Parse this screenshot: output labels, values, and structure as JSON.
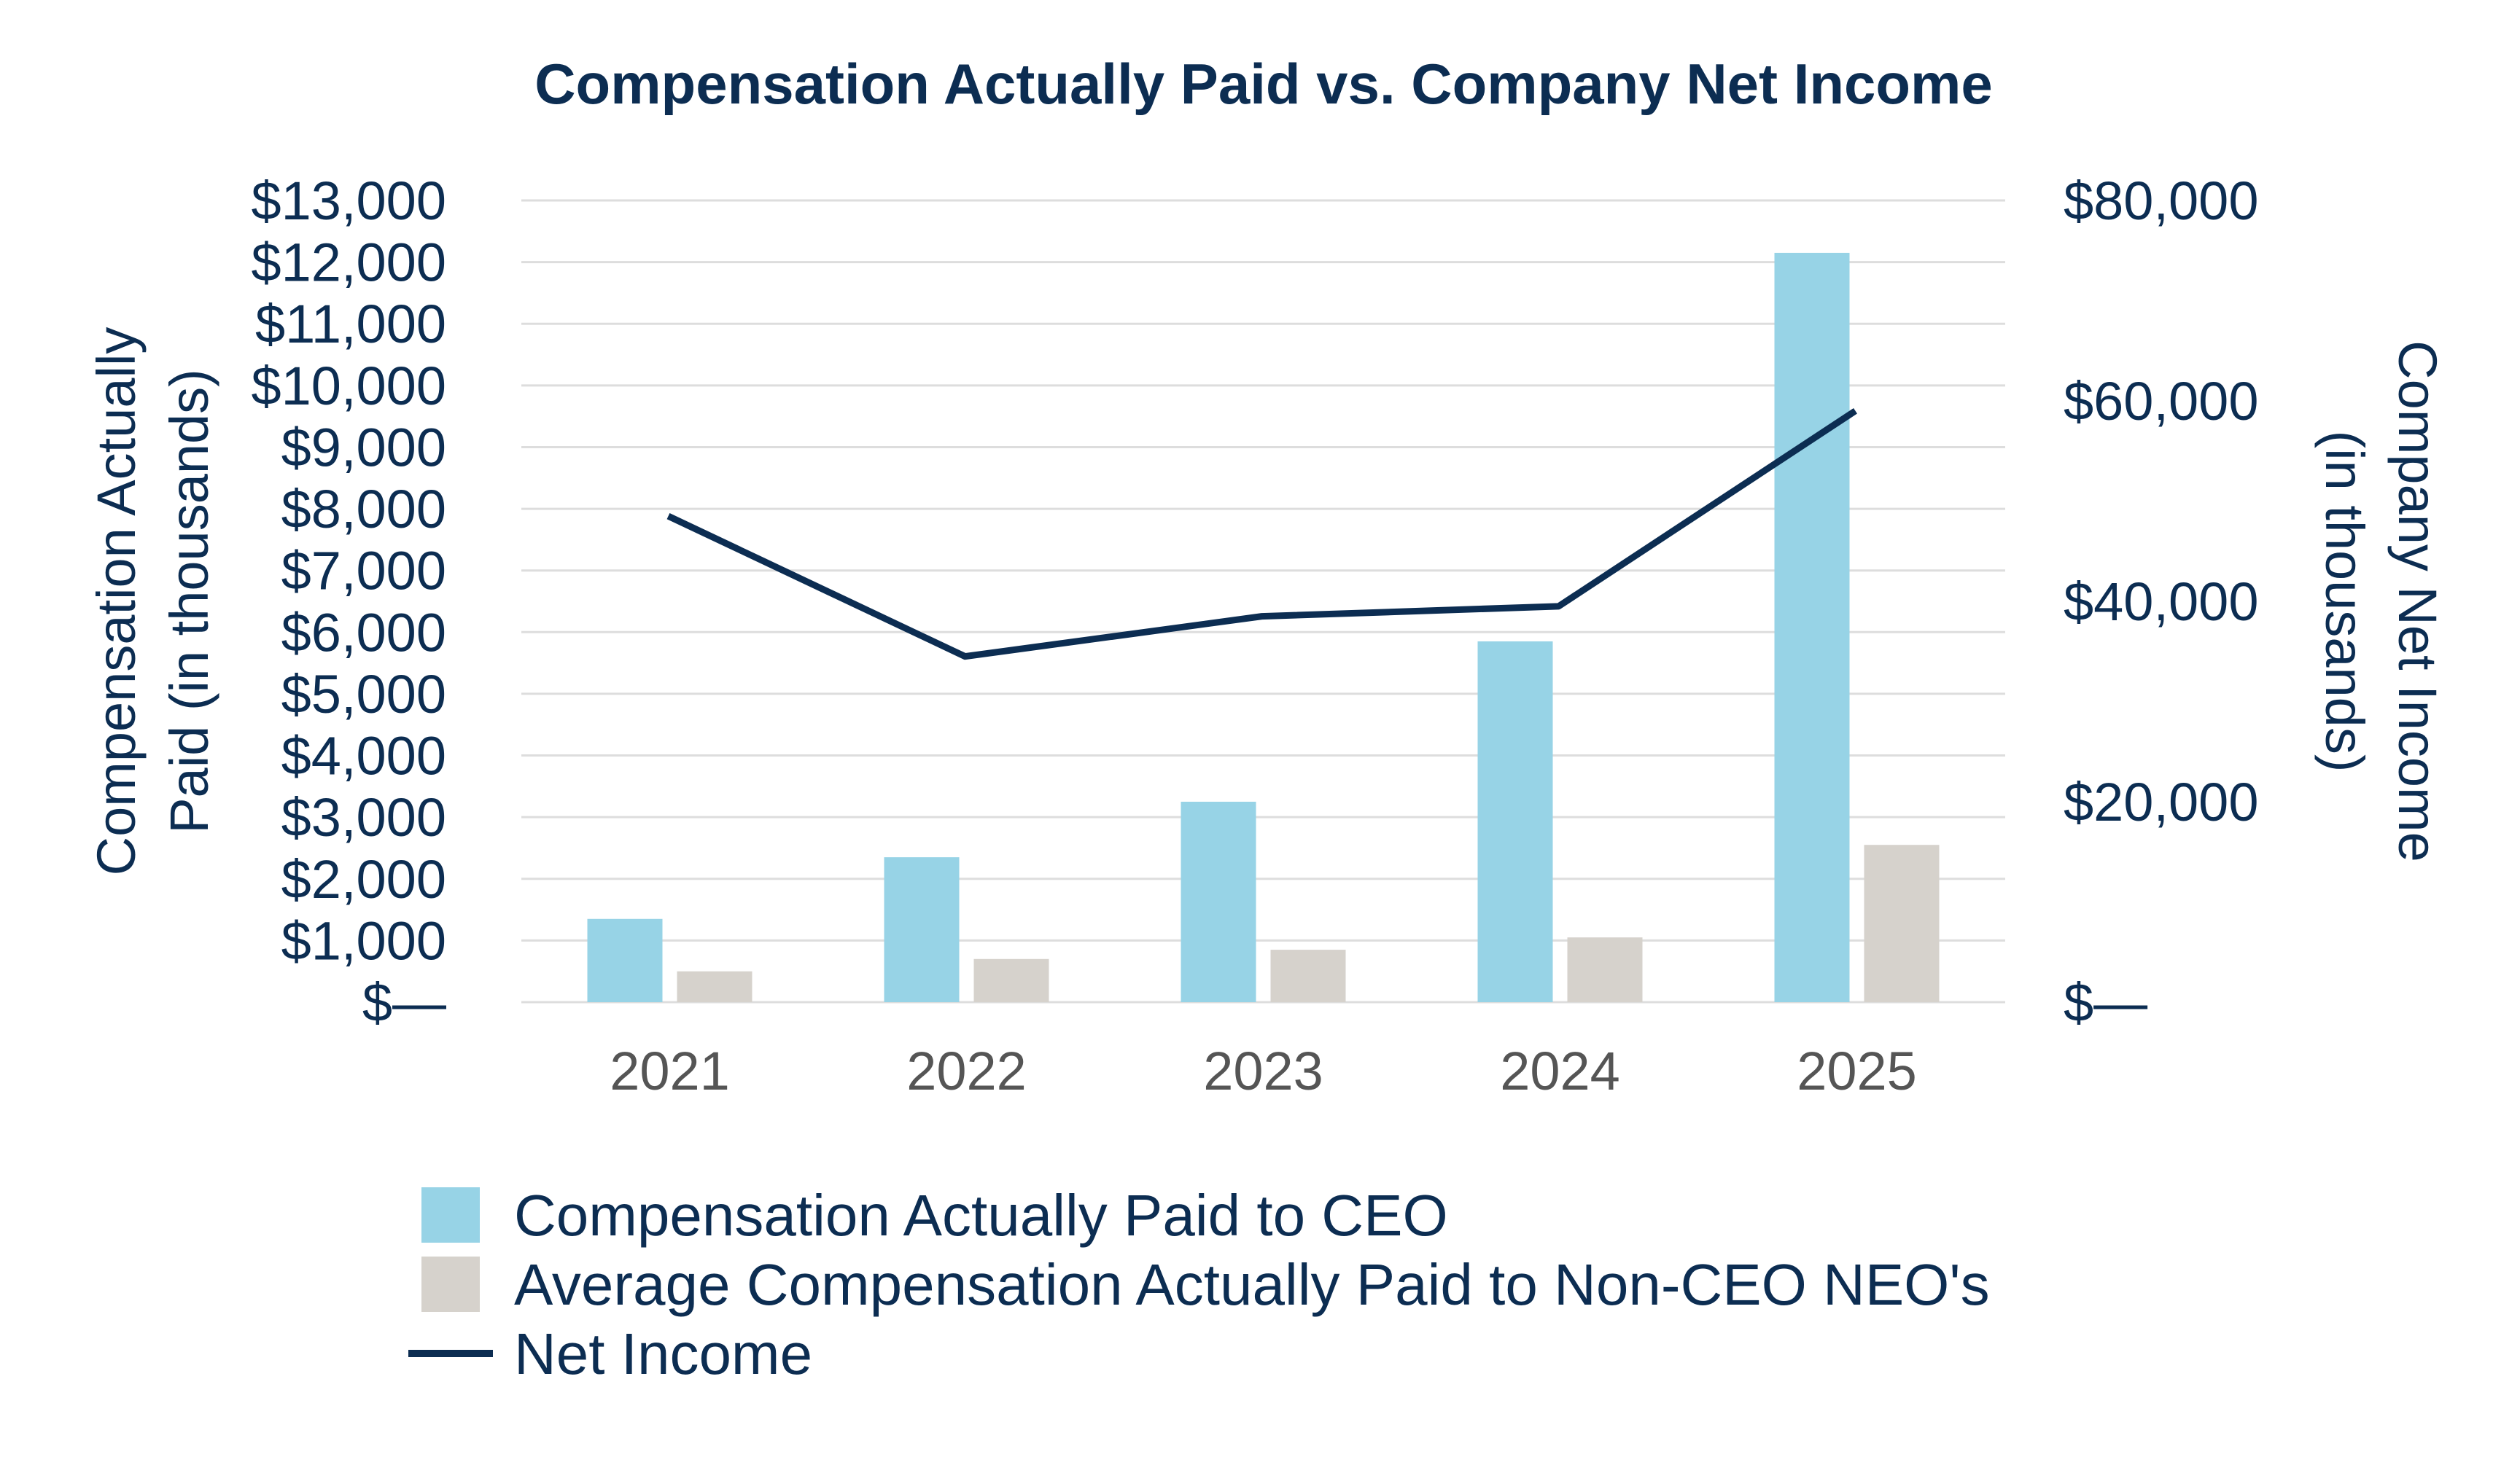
{
  "colors": {
    "ceo_bar": "#97d3e6",
    "neo_bar": "#d6d2cc",
    "net_income_line": "#0c2d52",
    "text_dark": "#0c2d52",
    "xtick_text": "#555555",
    "gridline": "#dddddd"
  },
  "chart_data": {
    "type": "bar",
    "title": "Compensation Actually Paid vs. Company Net Income",
    "categories": [
      "2021",
      "2022",
      "2023",
      "2024",
      "2025"
    ],
    "series": [
      {
        "name": "Compensation Actually Paid to CEO",
        "kind": "bar",
        "axis": "left",
        "values": [
          1350,
          2350,
          3250,
          5850,
          12150
        ]
      },
      {
        "name": "Average Compensation Actually Paid to Non-CEO NEO's",
        "kind": "bar",
        "axis": "left",
        "values": [
          500,
          700,
          850,
          1050,
          2550
        ]
      },
      {
        "name": "Net Income",
        "kind": "line",
        "axis": "right",
        "values": [
          48500,
          34500,
          38500,
          39500,
          59000
        ]
      }
    ],
    "ylabel": "Compensation Actually Paid (in thousands)",
    "ylabel_lines": [
      "Compensation Actually",
      "Paid (in thousands)"
    ],
    "ylabel_right": "Company Net Income (in thousands)",
    "ylabel_right_lines": [
      "Company Net Income",
      "(in thousands)"
    ],
    "ylim": [
      0,
      13000
    ],
    "ylim_right": [
      0,
      80000
    ],
    "yticks": [
      {
        "value": 0,
        "label": "$—"
      },
      {
        "value": 1000,
        "label": "$1,000"
      },
      {
        "value": 2000,
        "label": "$2,000"
      },
      {
        "value": 3000,
        "label": "$3,000"
      },
      {
        "value": 4000,
        "label": "$4,000"
      },
      {
        "value": 5000,
        "label": "$5,000"
      },
      {
        "value": 6000,
        "label": "$6,000"
      },
      {
        "value": 7000,
        "label": "$7,000"
      },
      {
        "value": 8000,
        "label": "$8,000"
      },
      {
        "value": 9000,
        "label": "$9,000"
      },
      {
        "value": 10000,
        "label": "$10,000"
      },
      {
        "value": 11000,
        "label": "$11,000"
      },
      {
        "value": 12000,
        "label": "$12,000"
      },
      {
        "value": 13000,
        "label": "$13,000"
      }
    ],
    "yticks_right": [
      {
        "value": 0,
        "label": "$—"
      },
      {
        "value": 20000,
        "label": "$20,000"
      },
      {
        "value": 40000,
        "label": "$40,000"
      },
      {
        "value": 60000,
        "label": "$60,000"
      },
      {
        "value": 80000,
        "label": "$80,000"
      }
    ],
    "grid": true,
    "legend_position": "bottom-left"
  }
}
